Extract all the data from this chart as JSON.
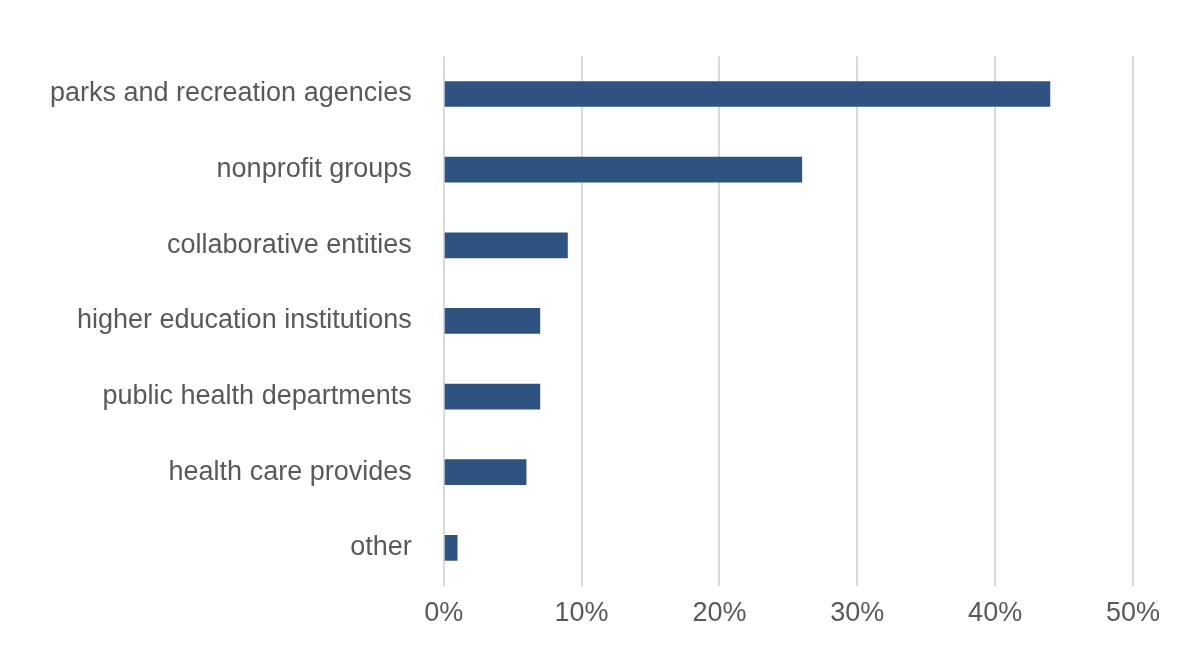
{
  "chart_data": {
    "type": "bar",
    "orientation": "horizontal",
    "categories": [
      "parks and recreation agencies",
      "nonprofit groups",
      "collaborative entities",
      "higher education institutions",
      "public health departments",
      "health care provides",
      "other"
    ],
    "values": [
      44,
      26,
      9,
      7,
      7,
      6,
      1
    ],
    "color": "#2e5380",
    "xlim": [
      0,
      50
    ],
    "xticks": [
      {
        "value": 0,
        "label": "0%"
      },
      {
        "value": 10,
        "label": "10%"
      },
      {
        "value": 20,
        "label": "20%"
      },
      {
        "value": 30,
        "label": "30%"
      },
      {
        "value": 40,
        "label": "40%"
      },
      {
        "value": 50,
        "label": "50%"
      }
    ],
    "grid": "x",
    "legend": false
  }
}
